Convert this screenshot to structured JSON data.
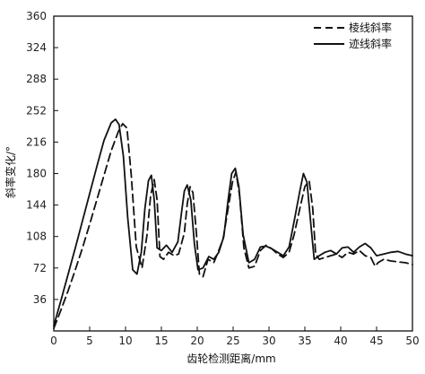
{
  "chart_data": {
    "type": "line",
    "xlabel": "齿轮检测距离/mm",
    "ylabel": "斜率变化/°",
    "xlim": [
      0,
      50
    ],
    "ylim": [
      0,
      360
    ],
    "xticks": [
      0,
      5,
      10,
      15,
      20,
      25,
      30,
      35,
      40,
      45,
      50
    ],
    "yticks": [
      36,
      72,
      108,
      144,
      180,
      216,
      252,
      288,
      324,
      360
    ],
    "grid": false,
    "legend_position": "top-right",
    "series": [
      {
        "name": "棱线斜率",
        "style": "dashed",
        "color": "#111111",
        "x": [
          0,
          1,
          2,
          3,
          4,
          5,
          6,
          7,
          8,
          9,
          9.6,
          10.2,
          10.8,
          11.5,
          12.3,
          13,
          13.5,
          14,
          14.4,
          14.8,
          15.3,
          16,
          16.8,
          17.4,
          18.2,
          18.6,
          19,
          19.4,
          19.9,
          20.3,
          20.8,
          21.5,
          22.3,
          22.9,
          23.6,
          24.3,
          24.9,
          25.4,
          25.9,
          26.5,
          27.2,
          28,
          28.8,
          29.6,
          30.4,
          31.2,
          32,
          32.8,
          33.5,
          34.3,
          35,
          35.6,
          36.1,
          36.5,
          37,
          37.8,
          38.6,
          39.4,
          40.2,
          41,
          41.8,
          42.6,
          43.4,
          44.2,
          44.8,
          45.2,
          46,
          47,
          48,
          49,
          50
        ],
        "values": [
          3,
          24,
          46,
          70,
          95,
          122,
          150,
          178,
          206,
          228,
          237,
          232,
          178,
          96,
          72,
          110,
          155,
          173,
          150,
          85,
          82,
          90,
          86,
          88,
          112,
          145,
          165,
          158,
          110,
          65,
          62,
          82,
          78,
          90,
          105,
          140,
          170,
          182,
          155,
          95,
          72,
          74,
          92,
          98,
          94,
          88,
          84,
          90,
          110,
          140,
          165,
          172,
          140,
          88,
          82,
          84,
          86,
          88,
          84,
          90,
          88,
          92,
          86,
          84,
          74,
          78,
          82,
          80,
          79,
          78,
          76
        ]
      },
      {
        "name": "迹线斜率",
        "style": "solid",
        "color": "#111111",
        "x": [
          0,
          1,
          2,
          3,
          4,
          5,
          6,
          7,
          8,
          8.6,
          9.1,
          9.7,
          10.3,
          11,
          11.6,
          12.2,
          12.7,
          13.2,
          13.6,
          14,
          14.4,
          15,
          15.7,
          16.5,
          17.3,
          17.8,
          18.2,
          18.6,
          19.1,
          19.6,
          20.1,
          20.8,
          21.6,
          22.3,
          23,
          23.7,
          24.3,
          24.8,
          25.3,
          25.8,
          26.4,
          27.2,
          28,
          28.8,
          29.6,
          30.4,
          31.2,
          32,
          32.8,
          33.5,
          34.3,
          34.8,
          35.3,
          35.8,
          36.3,
          37,
          37.8,
          38.6,
          39.4,
          40.2,
          41,
          41.8,
          42.6,
          43.4,
          44.2,
          45,
          46,
          47,
          48,
          49,
          50
        ],
        "values": [
          6,
          35,
          65,
          95,
          126,
          157,
          188,
          218,
          238,
          242,
          236,
          200,
          130,
          70,
          65,
          90,
          140,
          172,
          178,
          150,
          95,
          92,
          98,
          90,
          102,
          135,
          160,
          167,
          150,
          100,
          70,
          72,
          85,
          82,
          90,
          108,
          150,
          180,
          186,
          165,
          110,
          78,
          82,
          96,
          97,
          94,
          90,
          86,
          96,
          125,
          160,
          180,
          170,
          125,
          82,
          86,
          90,
          92,
          88,
          95,
          96,
          90,
          96,
          100,
          95,
          86,
          88,
          90,
          91,
          88,
          86
        ]
      }
    ]
  }
}
